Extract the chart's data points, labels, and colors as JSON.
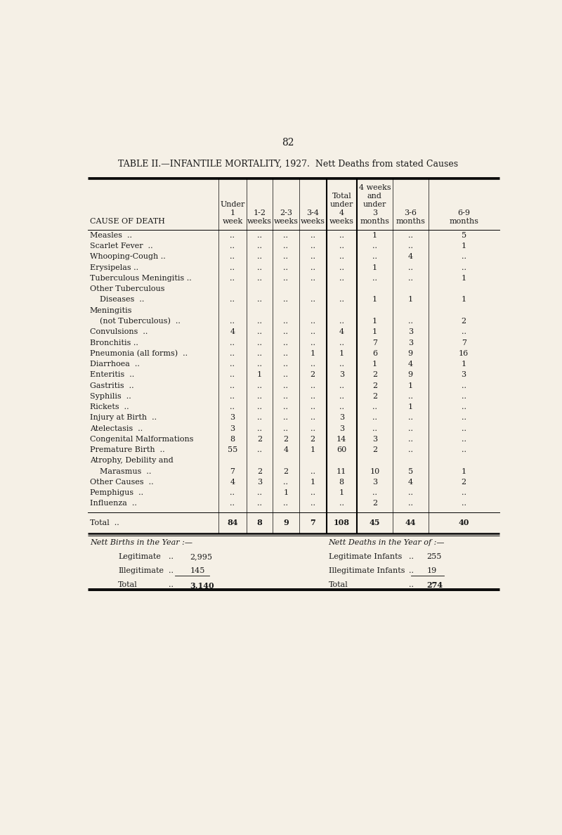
{
  "page_number": "82",
  "title_part1": "TABLE II.—INFANTILE MORTALITY, 1927.",
  "title_part2": "  Nett Deaths from stated Causes",
  "bg_color": "#f5f0e6",
  "text_color": "#1a1a1a",
  "header_lines": [
    [
      "",
      "Under",
      "",
      "",
      "",
      "Total",
      "4 weeks",
      "",
      ""
    ],
    [
      "",
      "1",
      "1-2",
      "2-3",
      "3-4",
      "under",
      "and",
      "3-6",
      "6-9"
    ],
    [
      "CAUSE OF DEATH",
      "week",
      "weeks",
      "weeks",
      "weeks",
      "4",
      "under",
      "months",
      "months"
    ],
    [
      "",
      "",
      "",
      "",
      "",
      "weeks",
      "3",
      "",
      ""
    ],
    [
      "",
      "",
      "",
      "",
      "",
      "",
      "months",
      "",
      ""
    ]
  ],
  "rows": [
    [
      "Measles  ..",
      "..",
      "..",
      "..",
      "..",
      "..",
      "1",
      "..",
      "5"
    ],
    [
      "Scarlet Fever  ..",
      "..",
      "..",
      "..",
      "..",
      "..",
      "..",
      "..",
      "1"
    ],
    [
      "Whooping-Cough ..",
      "..",
      "..",
      "..",
      "..",
      "..",
      "..",
      "4",
      ".."
    ],
    [
      "Erysipelas ..",
      "..",
      "..",
      "..",
      "..",
      "..",
      "1",
      "..",
      ".."
    ],
    [
      "Tuberculous Meningitis ..",
      "..",
      "..",
      "..",
      "..",
      "..",
      "..",
      "..",
      "1"
    ],
    [
      "Other Tuberculous",
      "",
      "",
      "",
      "",
      "",
      "",
      "",
      ""
    ],
    [
      "    Diseases  ..",
      "..",
      "..",
      "..",
      "..",
      "..",
      "1",
      "1",
      "1"
    ],
    [
      "Meningitis",
      "",
      "",
      "",
      "",
      "",
      "",
      "",
      ""
    ],
    [
      "    (not Tuberculous)  ..",
      "..",
      "..",
      "..",
      "..",
      "..",
      "1",
      "..",
      "2"
    ],
    [
      "Convulsions  ..",
      "4",
      "..",
      "..",
      "..",
      "4",
      "1",
      "3",
      ".."
    ],
    [
      "Bronchitis ..",
      "..",
      "..",
      "..",
      "..",
      "..",
      "7",
      "3",
      "7"
    ],
    [
      "Pneumonia (all forms)  ..",
      "..",
      "..",
      "..",
      "1",
      "1",
      "6",
      "9",
      "16"
    ],
    [
      "Diarrhoea  ..",
      "..",
      "..",
      "..",
      "..",
      "..",
      "1",
      "4",
      "1"
    ],
    [
      "Enteritis  ..",
      "..",
      "1",
      "..",
      "2",
      "3",
      "2",
      "9",
      "3"
    ],
    [
      "Gastritis  ..",
      "..",
      "..",
      "..",
      "..",
      "..",
      "2",
      "1",
      ".."
    ],
    [
      "Syphilis  ..",
      "..",
      "..",
      "..",
      "..",
      "..",
      "2",
      "..",
      ".."
    ],
    [
      "Rickets  ..",
      "..",
      "..",
      "..",
      "..",
      "..",
      "..",
      "1",
      ".."
    ],
    [
      "Injury at Birth  ..",
      "3",
      "..",
      "..",
      "..",
      "3",
      "..",
      "..",
      ".."
    ],
    [
      "Atelectasis  ..",
      "3",
      "..",
      "..",
      "..",
      "3",
      "..",
      "..",
      ".."
    ],
    [
      "Congenital Malformations",
      "8",
      "2",
      "2",
      "2",
      "14",
      "3",
      "..",
      ".."
    ],
    [
      "Premature Birth  ..",
      "55",
      "..",
      "4",
      "1",
      "60",
      "2",
      "..",
      ".."
    ],
    [
      "Atrophy, Debility and",
      "",
      "",
      "",
      "",
      "",
      "",
      "",
      ""
    ],
    [
      "    Marasmus  ..",
      "7",
      "2",
      "2",
      "..",
      "11",
      "10",
      "5",
      "1"
    ],
    [
      "Other Causes  ..",
      "4",
      "3",
      "..",
      "1",
      "8",
      "3",
      "4",
      "2"
    ],
    [
      "Pemphigus  ..",
      "..",
      "..",
      "1",
      "..",
      "1",
      "..",
      "..",
      ".."
    ],
    [
      "Influenza  ..",
      "..",
      "..",
      "..",
      "..",
      "..",
      "2",
      "..",
      ".."
    ]
  ],
  "total_row": [
    "Total  ..",
    "84",
    "8",
    "9",
    "7",
    "108",
    "45",
    "44",
    "40"
  ],
  "footer_left_title": "Nett Births in the Year :—",
  "footer_right_title": "Nett Deaths in the Year of :—",
  "footer_left": [
    [
      "Legitimate",
      "..",
      "2,995"
    ],
    [
      "Illegitimate",
      "..",
      "145"
    ],
    [
      "Total",
      "..",
      "3,140"
    ]
  ],
  "footer_right": [
    [
      "Legitimate Infants",
      "..",
      "255"
    ],
    [
      "Illegitimate Infants",
      "..",
      "19"
    ],
    [
      "Total",
      "..",
      "274"
    ]
  ]
}
